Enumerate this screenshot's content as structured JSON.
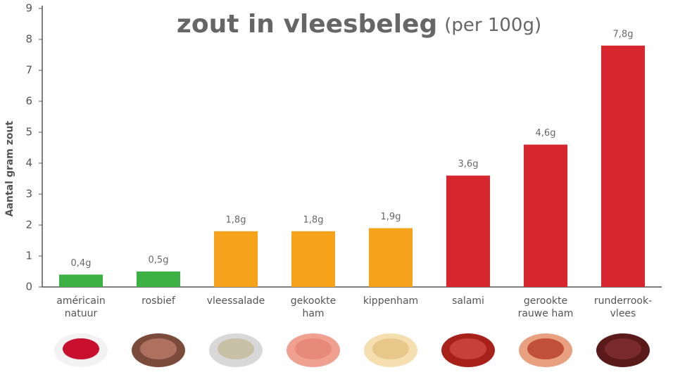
{
  "chart_data": {
    "type": "bar",
    "title": "zout in vleesbeleg",
    "subtitle": "(per 100g)",
    "y_axis_label": "Aantal gram zout",
    "categories": [
      "américain\nnatuur",
      "rosbief",
      "vleessalade",
      "gekookte\nham",
      "kippenham",
      "salami",
      "gerookte\nrauwe ham",
      "runderrook-\nvlees"
    ],
    "values": [
      0.4,
      0.5,
      1.8,
      1.8,
      1.9,
      3.6,
      4.6,
      7.8
    ],
    "value_labels": [
      "0,4g",
      "0,5g",
      "1,8g",
      "1,8g",
      "1,9g",
      "3,6g",
      "4,6g",
      "7,8g"
    ],
    "colors": [
      "#3cb043",
      "#3cb043",
      "#f7a21b",
      "#f7a21b",
      "#f7a21b",
      "#d7262d",
      "#d7262d",
      "#d7262d"
    ],
    "ylim": [
      0,
      9
    ],
    "yticks": [
      0,
      1,
      2,
      3,
      4,
      5,
      6,
      7,
      8,
      9
    ],
    "grid": false
  }
}
